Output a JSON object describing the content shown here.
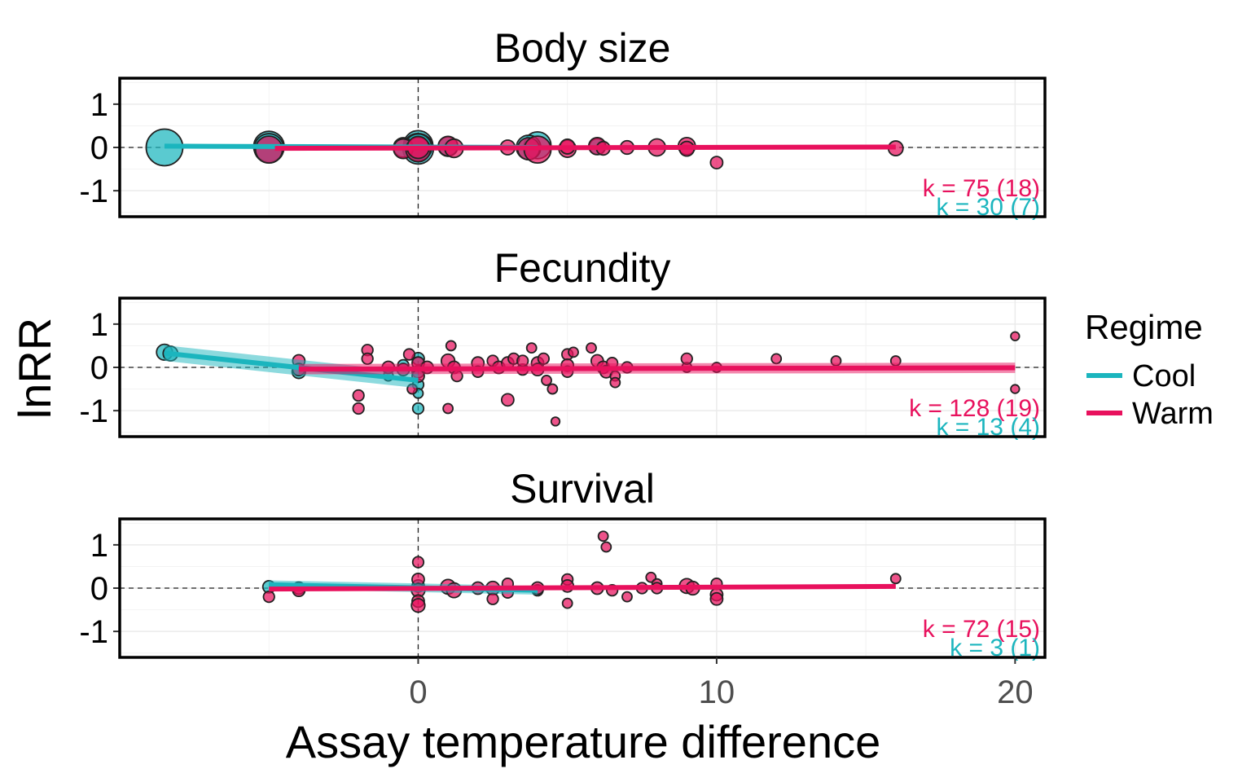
{
  "chart_data": {
    "type": "scatter",
    "xlabel": "Assay temperature difference",
    "ylabel": "lnRR",
    "xlim": [
      -10,
      21
    ],
    "ylim": [
      -1.6,
      1.6
    ],
    "x_ticks": [
      "0",
      "10",
      "20"
    ],
    "x_tick_values": [
      0,
      10,
      20
    ],
    "y_ticks": [
      "1",
      "0",
      "-1"
    ],
    "y_tick_values": [
      1,
      0,
      -1
    ],
    "grid": true,
    "legend": {
      "title": "Regime",
      "placement": "right",
      "items": [
        {
          "label": "Cool",
          "color": "#1BB5BE"
        },
        {
          "label": "Warm",
          "color": "#E8115D"
        }
      ]
    },
    "colors": {
      "cool": "#1BB5BE",
      "warm": "#E8115D"
    },
    "panels": [
      {
        "title": "Body size",
        "k_warm": "k = 75 (18)",
        "k_cool": "k = 30 (7)",
        "fit": {
          "cool": {
            "x": [
              -8.5,
              4
            ],
            "y": [
              0.03,
              0.0
            ],
            "ci": 0.03
          },
          "warm": {
            "x": [
              -4.8,
              16
            ],
            "y": [
              -0.02,
              0.01
            ],
            "ci": 0.03
          }
        },
        "series": [
          {
            "name": "Cool",
            "points": [
              [
                -8.5,
                0.0,
                3
              ],
              [
                -5,
                0.02,
                2.5
              ],
              [
                -5,
                -0.02,
                2.4
              ],
              [
                0,
                0.05,
                2.4
              ],
              [
                0,
                -0.03,
                2.5
              ],
              [
                0,
                0.0,
                2.2
              ],
              [
                4,
                0.05,
                2.2
              ],
              [
                3.7,
                0.0,
                2.0
              ],
              [
                1,
                0.02,
                1.6
              ],
              [
                -0.5,
                0.0,
                1.6
              ],
              [
                6,
                0.02,
                1.3
              ]
            ]
          },
          {
            "name": "Warm",
            "points": [
              [
                -5,
                -0.05,
                2.2
              ],
              [
                -0.5,
                -0.03,
                1.6
              ],
              [
                0,
                -0.05,
                2.0
              ],
              [
                0,
                0.0,
                1.8
              ],
              [
                1,
                0.03,
                1.6
              ],
              [
                1.2,
                -0.02,
                1.5
              ],
              [
                3,
                0.0,
                1.2
              ],
              [
                3.7,
                -0.03,
                1.8
              ],
              [
                4,
                -0.05,
                2.2
              ],
              [
                5,
                -0.03,
                1.4
              ],
              [
                5,
                0.02,
                1.2
              ],
              [
                6,
                0.03,
                1.4
              ],
              [
                6.2,
                -0.02,
                1.1
              ],
              [
                7,
                0.0,
                1.1
              ],
              [
                8,
                0.0,
                1.4
              ],
              [
                9,
                0.03,
                1.4
              ],
              [
                9,
                -0.03,
                1.2
              ],
              [
                10,
                -0.35,
                1.0
              ],
              [
                16,
                -0.02,
                1.2
              ]
            ]
          }
        ]
      },
      {
        "title": "Fecundity",
        "k_warm": "k = 128 (19)",
        "k_cool": "k = 13 (4)",
        "fit": {
          "cool": {
            "x": [
              -8.5,
              0
            ],
            "y": [
              0.33,
              -0.3
            ],
            "ci": 0.18
          },
          "warm": {
            "x": [
              -4,
              20
            ],
            "y": [
              -0.04,
              -0.01
            ],
            "ci": 0.12
          }
        },
        "series": [
          {
            "name": "Cool",
            "points": [
              [
                -8.5,
                0.35,
                1.3
              ],
              [
                -8.3,
                0.32,
                1.2
              ],
              [
                -4,
                -0.1,
                1.1
              ],
              [
                0,
                0.2,
                1.0
              ],
              [
                0,
                -0.1,
                1.0
              ],
              [
                0,
                -0.4,
                0.9
              ],
              [
                0,
                -0.95,
                0.9
              ],
              [
                0,
                -0.6,
                0.8
              ],
              [
                -0.5,
                0.05,
                0.9
              ],
              [
                -1,
                -0.2,
                0.8
              ]
            ]
          },
          {
            "name": "Warm",
            "points": [
              [
                -4,
                0.15,
                1.0
              ],
              [
                -4,
                -0.05,
                1.0
              ],
              [
                -2,
                -0.65,
                0.9
              ],
              [
                -2,
                -0.95,
                0.9
              ],
              [
                -1.7,
                0.4,
                0.9
              ],
              [
                -1.7,
                0.2,
                0.9
              ],
              [
                -1,
                0.0,
                1.0
              ],
              [
                -0.5,
                -0.05,
                1.0
              ],
              [
                -0.3,
                0.3,
                0.9
              ],
              [
                -0.2,
                -0.5,
                0.8
              ],
              [
                0,
                0.1,
                1.0
              ],
              [
                0,
                -0.2,
                1.0
              ],
              [
                0.3,
                0.0,
                1.0
              ],
              [
                1,
                0.15,
                1.1
              ],
              [
                1,
                -0.95,
                0.8
              ],
              [
                1.1,
                0.5,
                0.8
              ],
              [
                1.2,
                0.0,
                1.0
              ],
              [
                1.3,
                -0.2,
                0.9
              ],
              [
                2,
                0.1,
                1.0
              ],
              [
                2,
                -0.1,
                0.9
              ],
              [
                2.5,
                0.15,
                0.9
              ],
              [
                2.7,
                0.0,
                1.0
              ],
              [
                3,
                0.1,
                1.0
              ],
              [
                3,
                -0.75,
                1.0
              ],
              [
                3.2,
                0.2,
                0.9
              ],
              [
                3.5,
                -0.05,
                0.9
              ],
              [
                3.5,
                0.15,
                0.9
              ],
              [
                3.8,
                0.45,
                0.8
              ],
              [
                4,
                0.1,
                1.0
              ],
              [
                4,
                -0.05,
                1.0
              ],
              [
                4.2,
                0.2,
                0.9
              ],
              [
                4.3,
                -0.3,
                0.8
              ],
              [
                4.5,
                -0.5,
                0.8
              ],
              [
                4.6,
                -1.25,
                0.7
              ],
              [
                5,
                0.3,
                0.9
              ],
              [
                5,
                0.05,
                1.0
              ],
              [
                5,
                -0.1,
                0.9
              ],
              [
                5.2,
                0.35,
                0.8
              ],
              [
                5.8,
                0.45,
                0.8
              ],
              [
                6,
                0.15,
                1.0
              ],
              [
                6.2,
                0.0,
                1.0
              ],
              [
                6.3,
                -0.1,
                1.0
              ],
              [
                6.5,
                0.1,
                0.9
              ],
              [
                6.6,
                -0.2,
                0.8
              ],
              [
                6.6,
                -0.35,
                0.8
              ],
              [
                7,
                0.0,
                0.9
              ],
              [
                9,
                0.0,
                0.8
              ],
              [
                9,
                0.2,
                0.9
              ],
              [
                10,
                0.0,
                0.8
              ],
              [
                12,
                0.2,
                0.8
              ],
              [
                14,
                0.15,
                0.8
              ],
              [
                16,
                0.15,
                0.8
              ],
              [
                20,
                0.72,
                0.7
              ],
              [
                20,
                -0.5,
                0.7
              ]
            ]
          }
        ]
      },
      {
        "title": "Survival",
        "k_warm": "k = 72 (15)",
        "k_cool": "k = 3 (1)",
        "fit": {
          "cool": {
            "x": [
              -5,
              4
            ],
            "y": [
              0.08,
              -0.05
            ],
            "ci": 0.1
          },
          "warm": {
            "x": [
              -5,
              16
            ],
            "y": [
              -0.02,
              0.04
            ],
            "ci": 0.03
          }
        },
        "series": [
          {
            "name": "Cool",
            "points": [
              [
                -5,
                0.03,
                1.0
              ],
              [
                4,
                -0.05,
                0.9
              ],
              [
                0,
                0.05,
                1.0
              ]
            ]
          },
          {
            "name": "Warm",
            "points": [
              [
                -5,
                -0.2,
                0.9
              ],
              [
                -4,
                0.0,
                1.0
              ],
              [
                -4,
                -0.05,
                1.0
              ],
              [
                0,
                0.6,
                0.9
              ],
              [
                0,
                0.2,
                1.0
              ],
              [
                0,
                -0.05,
                1.1
              ],
              [
                0,
                -0.3,
                1.0
              ],
              [
                0,
                -0.4,
                1.1
              ],
              [
                1,
                0.03,
                1.2
              ],
              [
                1.2,
                -0.05,
                1.2
              ],
              [
                2,
                0.0,
                1.0
              ],
              [
                2.5,
                0.0,
                1.1
              ],
              [
                2.5,
                -0.25,
                0.9
              ],
              [
                3,
                0.1,
                0.9
              ],
              [
                3,
                -0.1,
                0.9
              ],
              [
                4,
                0.0,
                1.0
              ],
              [
                5,
                0.2,
                0.9
              ],
              [
                5,
                0.05,
                1.0
              ],
              [
                5,
                -0.35,
                0.8
              ],
              [
                6,
                0.0,
                1.0
              ],
              [
                6.2,
                1.2,
                0.8
              ],
              [
                6.3,
                0.95,
                0.8
              ],
              [
                6.5,
                -0.05,
                0.9
              ],
              [
                7,
                -0.2,
                0.8
              ],
              [
                7.5,
                0.0,
                0.9
              ],
              [
                7.8,
                0.25,
                0.8
              ],
              [
                8,
                0.1,
                0.8
              ],
              [
                8,
                0.0,
                0.9
              ],
              [
                9,
                0.05,
                1.2
              ],
              [
                9.2,
                0.0,
                1.1
              ],
              [
                10,
                0.1,
                0.9
              ],
              [
                10,
                -0.15,
                1.0
              ],
              [
                10,
                -0.25,
                1.0
              ],
              [
                16,
                0.22,
                0.8
              ]
            ]
          }
        ]
      }
    ]
  }
}
